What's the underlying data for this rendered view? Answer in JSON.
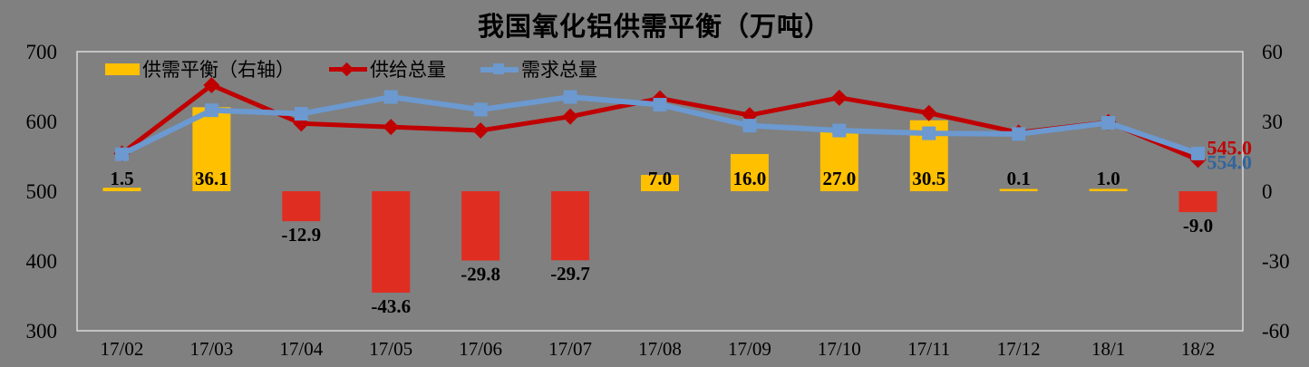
{
  "chart_data": {
    "type": "combo",
    "title": "我国氧化铝供需平衡（万吨）",
    "background": "#808080",
    "plot_border_color": "#D9D9D9",
    "text_color": "#000000",
    "grid": false,
    "legend_position": "top-left",
    "categories": [
      "17/02",
      "17/03",
      "17/04",
      "17/05",
      "17/06",
      "17/07",
      "17/08",
      "17/09",
      "17/10",
      "17/11",
      "17/12",
      "18/1",
      "18/2"
    ],
    "left_axis": {
      "min": 300,
      "max": 700,
      "ticks": [
        700,
        600,
        500,
        400,
        300
      ]
    },
    "right_axis": {
      "min": -60,
      "max": 60,
      "ticks": [
        60,
        30,
        0,
        -30,
        -60
      ]
    },
    "series": [
      {
        "name": "供需平衡（右轴）",
        "chart_type": "bar",
        "axis": "right",
        "positive_color": "#FFC000",
        "negative_color": "#E02D22",
        "values": [
          1.5,
          36.1,
          -12.9,
          -43.6,
          -29.8,
          -29.7,
          7.0,
          16.0,
          27.0,
          30.5,
          0.1,
          1.0,
          -9.0
        ]
      },
      {
        "name": "供给总量",
        "chart_type": "line",
        "axis": "left",
        "marker": "diamond",
        "color": "#C00000",
        "values": [
          554,
          652,
          597,
          592,
          587,
          607,
          633,
          609,
          634,
          612,
          584,
          599,
          545
        ],
        "last_point_label": "545.0",
        "last_label_color": "#C00000"
      },
      {
        "name": "需求总量",
        "chart_type": "line",
        "axis": "left",
        "marker": "square",
        "color": "#6B99D0",
        "values": [
          553,
          616,
          611,
          635,
          617,
          635,
          624,
          594,
          587,
          583,
          582,
          598,
          554
        ],
        "last_point_label": "554.0",
        "last_label_color": "#31659C"
      }
    ]
  }
}
